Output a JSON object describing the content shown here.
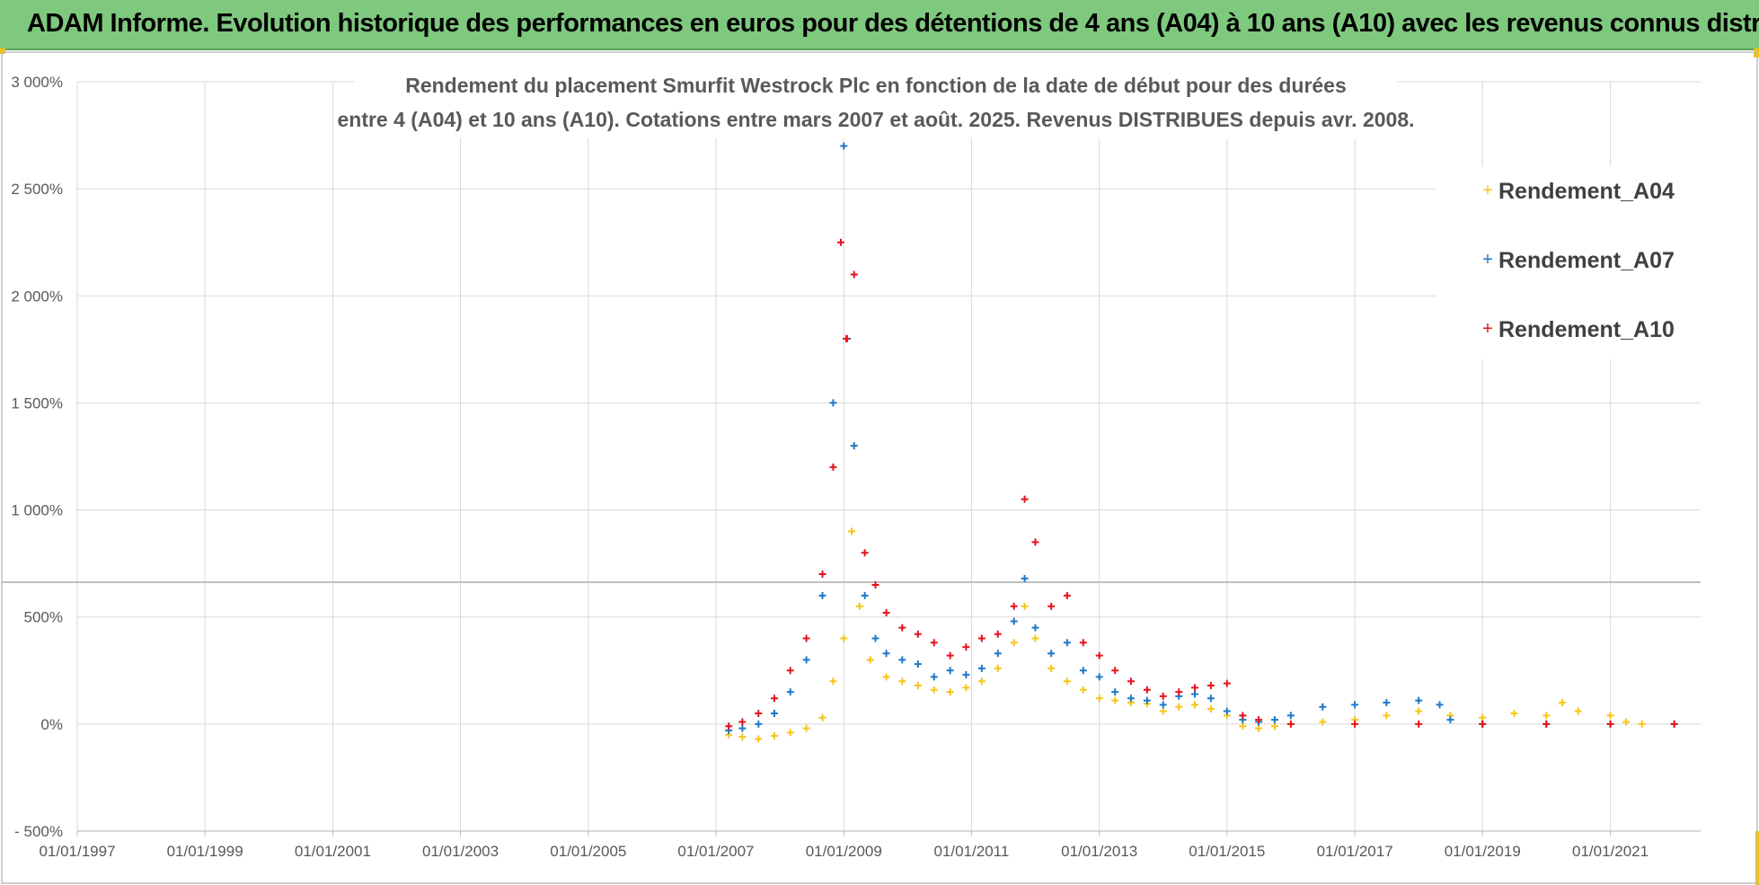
{
  "header": {
    "title": "ADAM Informe. Evolution historique des performances en euros pour des détentions de 4 ans (A04) à 10 ans (A10) avec les revenus connus distribués"
  },
  "colors": {
    "banner": "#7fc97f",
    "A04": "#f5c518",
    "A07": "#1f78c8",
    "A10": "#e8121b",
    "grid": "#d9d9d9"
  },
  "chart_data": {
    "type": "scatter",
    "title": "",
    "subtitle_lines": [
      "Rendement du placement Smurfit Westrock Plc en fonction de la date de début pour des durées",
      "entre 4 (A04) et 10 ans (A10).  Cotations entre mars 2007 et août. 2025. Revenus DISTRIBUES depuis avr. 2008."
    ],
    "x_axis": {
      "type": "date",
      "range": [
        "1997-01-01",
        "2022-06-01"
      ],
      "tick_labels": [
        "01/01/1997",
        "01/01/1999",
        "01/01/2001",
        "01/01/2003",
        "01/01/2005",
        "01/01/2007",
        "01/01/2009",
        "01/01/2011",
        "01/01/2013",
        "01/01/2015",
        "01/01/2017",
        "01/01/2019",
        "01/01/2021"
      ],
      "tick_dates": [
        "1997-01-01",
        "1999-01-01",
        "2001-01-01",
        "2003-01-01",
        "2005-01-01",
        "2007-01-01",
        "2009-01-01",
        "2011-01-01",
        "2013-01-01",
        "2015-01-01",
        "2017-01-01",
        "2019-01-01",
        "2021-01-01"
      ]
    },
    "y_axis": {
      "range": [
        -500,
        3000
      ],
      "ticks": [
        -500,
        0,
        500,
        1000,
        1500,
        2000,
        2500,
        3000
      ],
      "tick_labels": [
        "- 500%",
        "0%",
        "500%",
        "1 000%",
        "1 500%",
        "2 000%",
        "2 500%",
        "3 000%"
      ],
      "unit": "%"
    },
    "grid": true,
    "legend": {
      "position": "top-right",
      "marker": "+"
    },
    "series": [
      {
        "name": "Rendement_A04",
        "x": [
          "2007-03-15",
          "2007-06-01",
          "2007-09-01",
          "2007-12-01",
          "2008-03-01",
          "2008-06-01",
          "2008-09-01",
          "2008-11-01",
          "2009-01-01",
          "2009-02-15",
          "2009-04-01",
          "2009-06-01",
          "2009-09-01",
          "2009-12-01",
          "2010-03-01",
          "2010-06-01",
          "2010-09-01",
          "2010-12-01",
          "2011-03-01",
          "2011-06-01",
          "2011-09-01",
          "2011-11-01",
          "2012-01-01",
          "2012-04-01",
          "2012-07-01",
          "2012-10-01",
          "2013-01-01",
          "2013-04-01",
          "2013-07-01",
          "2013-10-01",
          "2014-01-01",
          "2014-04-01",
          "2014-07-01",
          "2014-10-01",
          "2015-01-01",
          "2015-04-01",
          "2015-07-01",
          "2015-10-01",
          "2016-01-01",
          "2016-07-01",
          "2017-01-01",
          "2017-07-01",
          "2018-01-01",
          "2018-07-01",
          "2019-01-01",
          "2019-07-01",
          "2020-01-01",
          "2020-04-01",
          "2020-07-01",
          "2021-01-01",
          "2021-04-01",
          "2021-07-01",
          "2022-01-01"
        ],
        "y": [
          -50,
          -60,
          -70,
          -55,
          -40,
          -20,
          30,
          200,
          400,
          900,
          550,
          300,
          220,
          200,
          180,
          160,
          150,
          170,
          200,
          260,
          380,
          550,
          400,
          260,
          200,
          160,
          120,
          110,
          100,
          95,
          60,
          80,
          90,
          70,
          40,
          -10,
          -20,
          -10,
          0,
          10,
          20,
          40,
          60,
          40,
          30,
          50,
          40,
          100,
          60,
          40,
          10,
          0,
          0
        ]
      },
      {
        "name": "Rendement_A07",
        "x": [
          "2007-03-15",
          "2007-06-01",
          "2007-09-01",
          "2007-12-01",
          "2008-03-01",
          "2008-06-01",
          "2008-09-01",
          "2008-11-01",
          "2009-01-01",
          "2009-01-20",
          "2009-03-01",
          "2009-05-01",
          "2009-07-01",
          "2009-09-01",
          "2009-12-01",
          "2010-03-01",
          "2010-06-01",
          "2010-09-01",
          "2010-12-01",
          "2011-03-01",
          "2011-06-01",
          "2011-09-01",
          "2011-11-01",
          "2012-01-01",
          "2012-04-01",
          "2012-07-01",
          "2012-10-01",
          "2013-01-01",
          "2013-04-01",
          "2013-07-01",
          "2013-10-01",
          "2014-01-01",
          "2014-04-01",
          "2014-07-01",
          "2014-10-01",
          "2015-01-01",
          "2015-04-01",
          "2015-07-01",
          "2015-10-01",
          "2016-01-01",
          "2016-07-01",
          "2017-01-01",
          "2017-07-01",
          "2018-01-01",
          "2018-05-01",
          "2018-07-01",
          "2019-01-01",
          "2020-01-01",
          "2021-01-01",
          "2022-01-01"
        ],
        "y": [
          -30,
          -20,
          0,
          50,
          150,
          300,
          600,
          1500,
          2700,
          1800,
          1300,
          600,
          400,
          330,
          300,
          280,
          220,
          250,
          230,
          260,
          330,
          480,
          680,
          450,
          330,
          380,
          250,
          220,
          150,
          120,
          110,
          90,
          130,
          140,
          120,
          60,
          20,
          10,
          20,
          40,
          80,
          90,
          100,
          110,
          90,
          20,
          0,
          0,
          0,
          0
        ]
      },
      {
        "name": "Rendement_A10",
        "x": [
          "2007-03-15",
          "2007-06-01",
          "2007-09-01",
          "2007-12-01",
          "2008-03-01",
          "2008-06-01",
          "2008-09-01",
          "2008-11-01",
          "2008-12-15",
          "2009-01-15",
          "2009-03-01",
          "2009-05-01",
          "2009-07-01",
          "2009-09-01",
          "2009-12-01",
          "2010-03-01",
          "2010-06-01",
          "2010-09-01",
          "2010-12-01",
          "2011-03-01",
          "2011-06-01",
          "2011-09-01",
          "2011-11-01",
          "2012-01-01",
          "2012-04-01",
          "2012-07-01",
          "2012-10-01",
          "2013-01-01",
          "2013-04-01",
          "2013-07-01",
          "2013-10-01",
          "2014-01-01",
          "2014-04-01",
          "2014-07-01",
          "2014-10-01",
          "2015-01-01",
          "2015-04-01",
          "2015-07-01",
          "2016-01-01",
          "2017-01-01",
          "2018-01-01",
          "2019-01-01",
          "2020-01-01",
          "2021-01-01",
          "2022-01-01"
        ],
        "y": [
          -10,
          10,
          50,
          120,
          250,
          400,
          700,
          1200,
          2250,
          1800,
          2100,
          800,
          650,
          520,
          450,
          420,
          380,
          320,
          360,
          400,
          420,
          550,
          1050,
          850,
          550,
          600,
          380,
          320,
          250,
          200,
          160,
          130,
          150,
          170,
          180,
          190,
          40,
          20,
          0,
          0,
          0,
          0,
          0,
          0,
          0
        ]
      }
    ]
  }
}
